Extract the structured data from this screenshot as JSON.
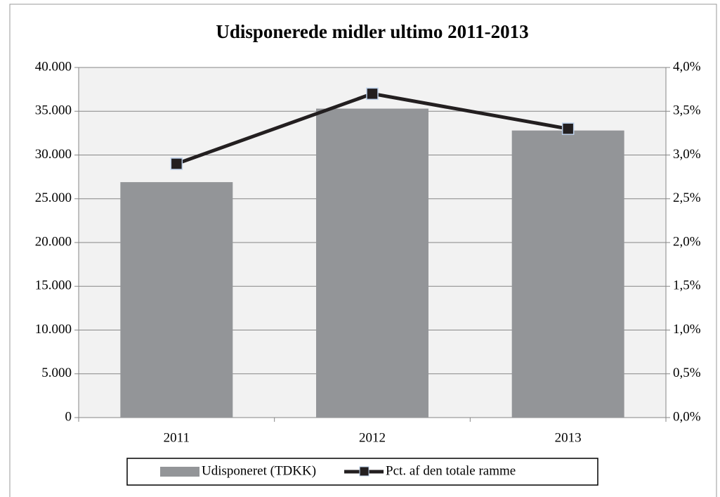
{
  "chart_data": {
    "type": "bar",
    "title": "Udisponerede midler ultimo 2011-2013",
    "categories": [
      "2011",
      "2012",
      "2013"
    ],
    "series": [
      {
        "name": "Udisponeret (TDKK)",
        "color": "#939598",
        "type": "bar",
        "values": [
          26900,
          35300,
          32800
        ]
      },
      {
        "name": "Pct. af den totale ramme",
        "color": "#231f20",
        "type": "line",
        "axis": "y2",
        "values": [
          2.9,
          3.7,
          3.3
        ]
      }
    ],
    "ylim": [
      0,
      40000
    ],
    "yticks": [
      0,
      {
        "value": 5000,
        "label": "5.000"
      },
      {
        "value": 10000,
        "label": "10.000"
      },
      {
        "value": 15000,
        "label": "15.000"
      },
      {
        "value": 20000,
        "label": "20.000"
      },
      {
        "value": 25000,
        "label": "25.000"
      },
      {
        "value": 30000,
        "label": "30.000"
      },
      {
        "value": 35000,
        "label": "35.000"
      },
      {
        "value": 40000,
        "label": "40.000"
      }
    ],
    "y2lim": [
      0,
      4
    ],
    "y2ticks": [
      {
        "value": 0,
        "label": "0,0%"
      },
      {
        "value": 0.5,
        "label": "0,5%"
      },
      {
        "value": 1,
        "label": "1,0%"
      },
      {
        "value": 1.5,
        "label": "1,5%"
      },
      {
        "value": 2,
        "label": "2,0%"
      },
      {
        "value": 2.5,
        "label": "2,5%"
      },
      {
        "value": 3,
        "label": "3,0%"
      },
      {
        "value": 3.5,
        "label": "3,5%"
      },
      {
        "value": 4,
        "label": "4,0%"
      }
    ],
    "grid": true,
    "legend": "bottom"
  }
}
